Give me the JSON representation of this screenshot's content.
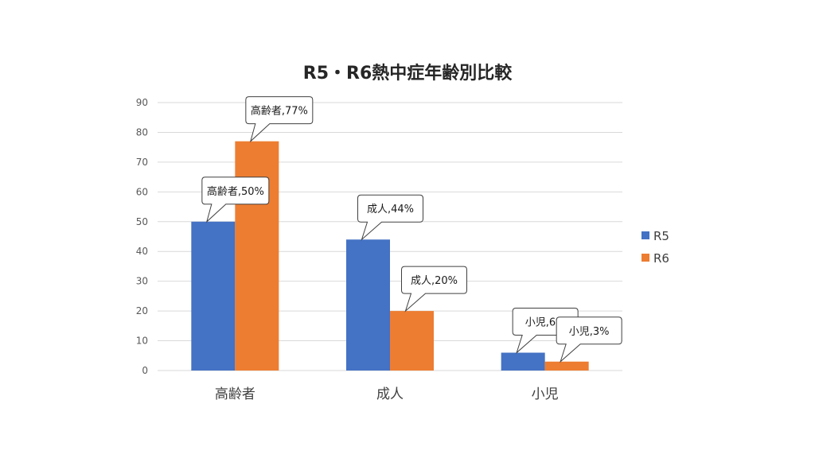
{
  "chart_data": {
    "type": "bar",
    "title": "R5・R6熱中症年齢別比較",
    "categories": [
      "高齢者",
      "成人",
      "小児"
    ],
    "series": [
      {
        "name": "R5",
        "values": [
          50,
          44,
          6
        ],
        "color": "#4472C4"
      },
      {
        "name": "R6",
        "values": [
          77,
          20,
          3
        ],
        "color": "#ED7D31"
      }
    ],
    "ylim": [
      0,
      90
    ],
    "yticks": [
      0,
      10,
      20,
      30,
      40,
      50,
      60,
      70,
      80,
      90
    ],
    "grid": true,
    "legend": "right",
    "data_labels": [
      [
        "高齢者,50%",
        "成人,44%",
        "小児,6%"
      ],
      [
        "高齢者,77%",
        "成人,20%",
        "小児,3%"
      ]
    ]
  }
}
